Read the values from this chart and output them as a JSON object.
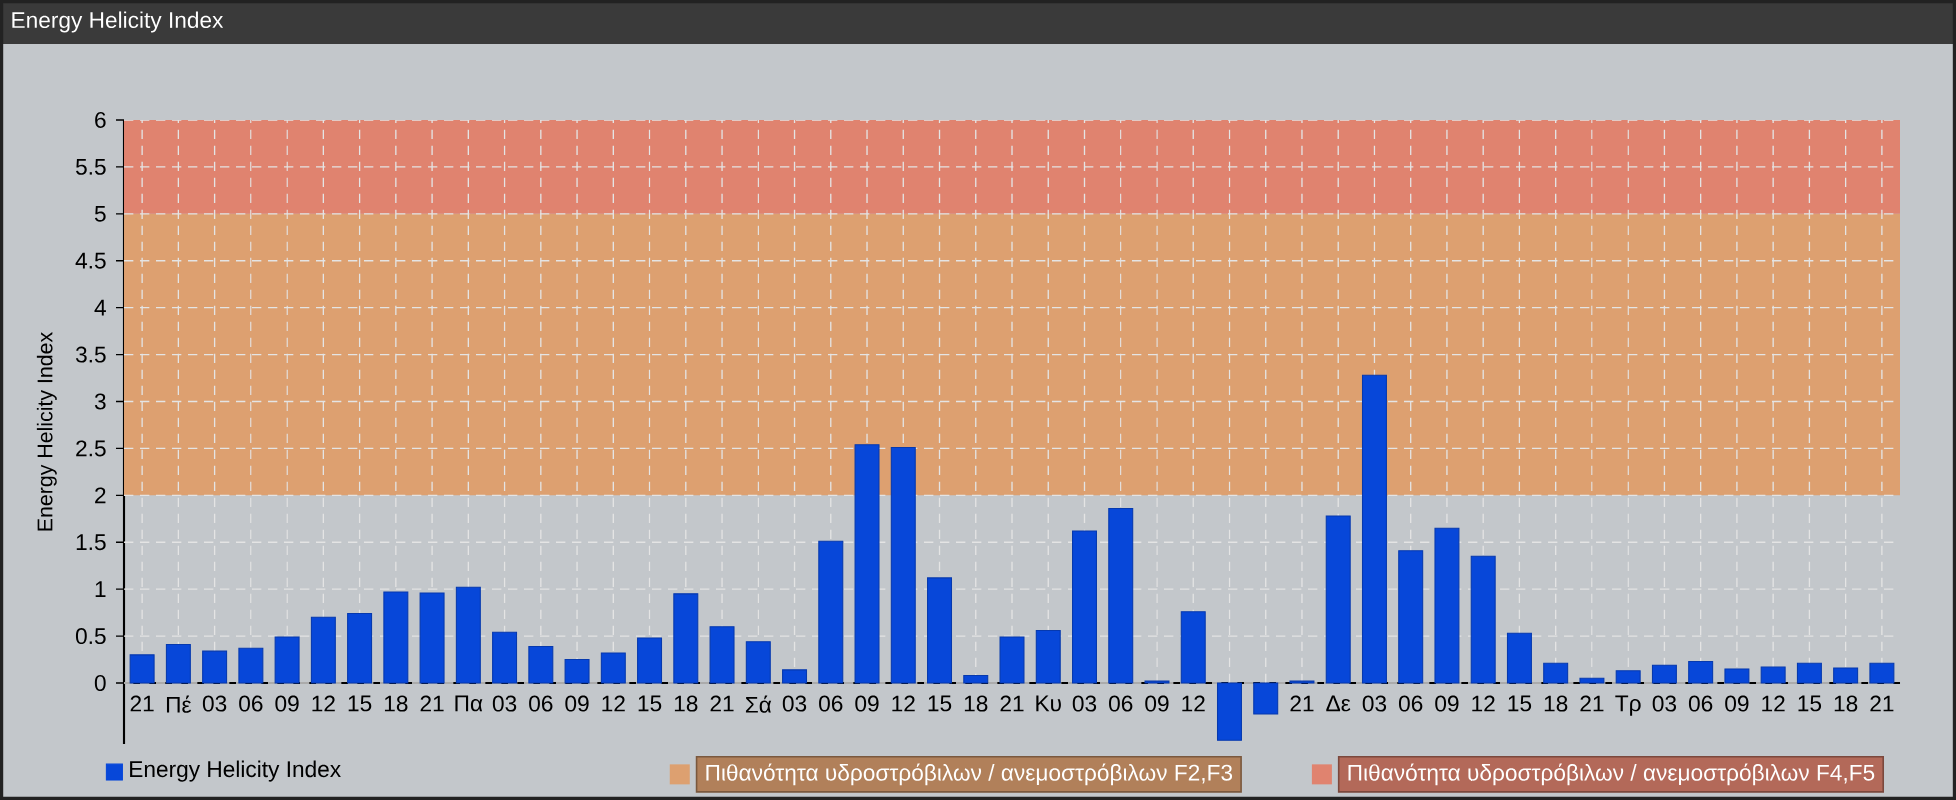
{
  "chart_data": {
    "type": "bar",
    "title": "Energy Helicity Index",
    "ylabel": "Energy Helicity Index",
    "categories": [
      "21",
      "Πέ",
      "03",
      "06",
      "09",
      "12",
      "15",
      "18",
      "21",
      "Πα",
      "03",
      "06",
      "09",
      "12",
      "15",
      "18",
      "21",
      "Σά",
      "03",
      "06",
      "09",
      "12",
      "15",
      "18",
      "21",
      "Κυ",
      "03",
      "06",
      "09",
      "12",
      null,
      null,
      "21",
      "Δε",
      "03",
      "06",
      "09",
      "12",
      "15",
      "18",
      "21",
      "Τρ",
      "03",
      "06",
      "09",
      "12",
      "15",
      "18",
      "21"
    ],
    "series": [
      {
        "name": "Energy Helicity Index",
        "color": "#0747d9",
        "values": [
          0.3,
          0.41,
          0.34,
          0.37,
          0.49,
          0.7,
          0.74,
          0.97,
          0.96,
          1.02,
          0.54,
          0.39,
          0.25,
          0.32,
          0.48,
          0.95,
          0.6,
          0.44,
          0.14,
          1.51,
          2.54,
          2.51,
          1.12,
          0.08,
          0.49,
          0.56,
          1.62,
          1.86,
          0.02,
          0.76,
          -0.61,
          -0.33,
          0.02,
          1.78,
          3.28,
          1.41,
          1.65,
          1.35,
          0.53,
          0.21,
          0.05,
          0.13,
          0.19,
          0.23,
          0.15,
          0.17,
          0.21,
          0.16,
          0.21
        ]
      }
    ],
    "ylim": [
      -0.65,
      6
    ],
    "yticks": [
      0,
      0.5,
      1,
      1.5,
      2,
      2.5,
      3,
      3.5,
      4,
      4.5,
      5,
      5.5,
      6
    ],
    "bands": [
      {
        "axis": "y",
        "from": 2,
        "to": 5,
        "label": "Πιθανότητα υδροστρόβιλων / ανεμοστρόβιλων F2,F3",
        "color": "#dda070"
      },
      {
        "axis": "y",
        "from": 5,
        "to": 6,
        "label": "Πιθανότητα υδροστρόβιλων / ανεμοστρόβιλων F4,F5",
        "color": "#e0836f"
      }
    ],
    "grid": true,
    "legend": "bottom"
  }
}
